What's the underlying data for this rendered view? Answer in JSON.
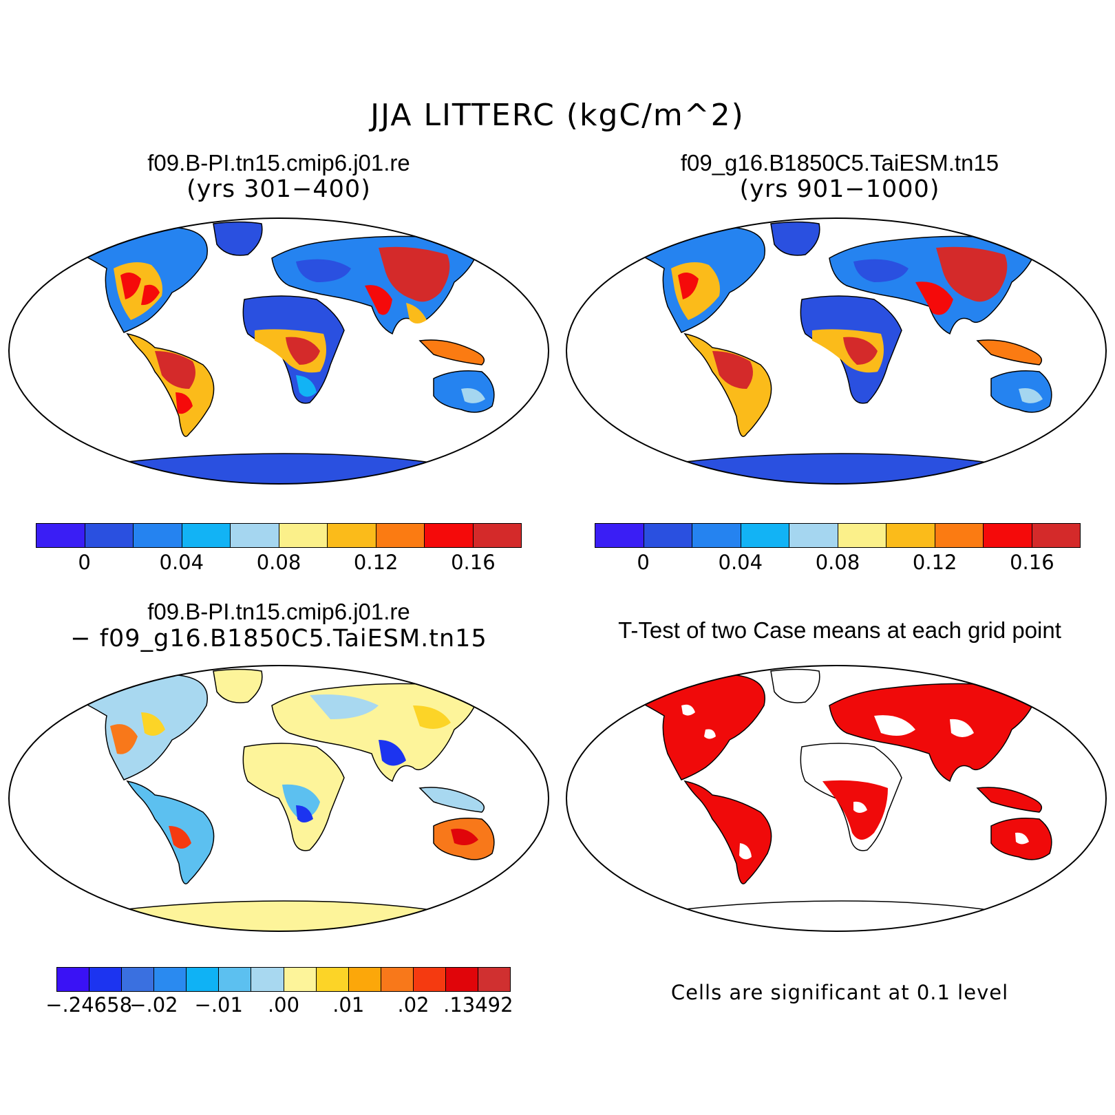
{
  "title": "JJA LITTERC (kgC/m^2)",
  "panels": [
    {
      "id": "case1",
      "title": "f09.B-PI.tn15.cmip6.j01.re",
      "subtitle": "(yrs 301−400)"
    },
    {
      "id": "case2",
      "title": "f09_g16.B1850C5.TaiESM.tn15",
      "subtitle": "(yrs 901−1000)"
    },
    {
      "id": "diff",
      "title": "f09.B-PI.tn15.cmip6.j01.re",
      "subtitle": "− f09_g16.B1850C5.TaiESM.tn15"
    },
    {
      "id": "ttest",
      "title": "T-Test of two Case means at each grid point",
      "note": "Cells are significant at 0.1 level"
    }
  ],
  "colorbar_main": {
    "colors": [
      "#3a1ef5",
      "#2a50e0",
      "#2583f0",
      "#12b3f5",
      "#a5d6f0",
      "#fbf08a",
      "#fbbb1a",
      "#fb7b12",
      "#f50a0a",
      "#d42a2a"
    ],
    "ticks": [
      "0",
      "0.04",
      "0.08",
      "0.12",
      "0.16"
    ]
  },
  "colorbar_diff": {
    "colors": [
      "#3a12f5",
      "#1c34f0",
      "#3a70e0",
      "#2a8af0",
      "#0fb2f5",
      "#5cc0f0",
      "#a8d8f0",
      "#fdf49a",
      "#fcd427",
      "#fca70a",
      "#f8781a",
      "#f53a10",
      "#e0050a",
      "#d03030"
    ],
    "ticks": [
      "−.24658",
      "−.02",
      "−.01",
      ".00",
      ".01",
      ".02",
      ".13492"
    ]
  },
  "significance_color": "#f00a0a"
}
